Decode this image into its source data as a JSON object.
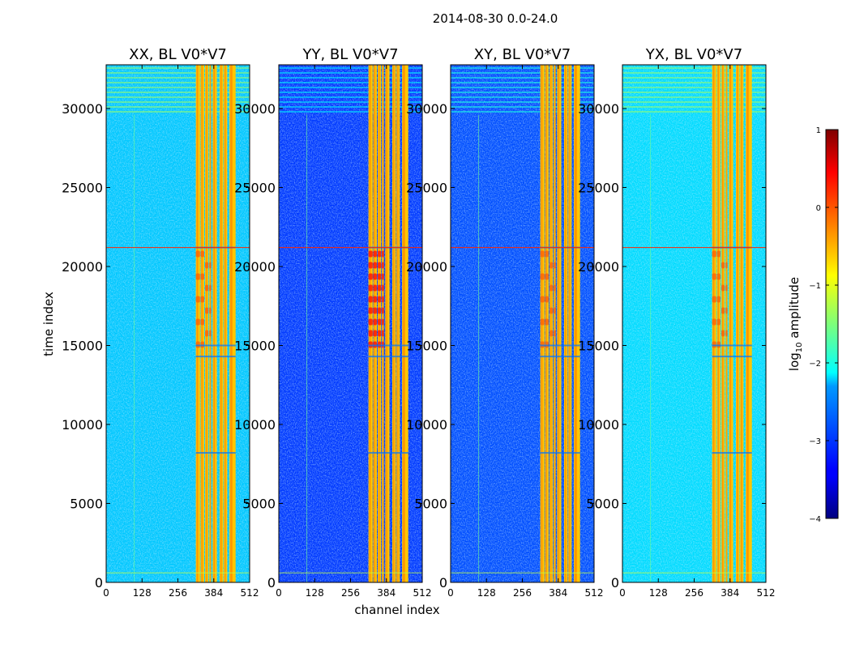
{
  "chart_data": {
    "type": "heatmap",
    "suptitle": "2014-08-30 0.0-24.0",
    "xlabel": "channel index",
    "ylabel": "time index",
    "xlim": [
      0,
      512
    ],
    "ylim": [
      0,
      32768
    ],
    "x_ticks": [
      0,
      128,
      256,
      384,
      512
    ],
    "y_ticks": [
      0,
      5000,
      10000,
      15000,
      20000,
      25000,
      30000
    ],
    "panels": [
      {
        "title": "XX, BL V0*V7",
        "background_level": -2.4,
        "noise_level": -2.0
      },
      {
        "title": "YY, BL V0*V7",
        "background_level": -3.1,
        "noise_level": -2.8
      },
      {
        "title": "XY, BL V0*V7",
        "background_level": -3.0,
        "noise_level": -2.6
      },
      {
        "title": "YX, BL V0*V7",
        "background_level": -2.3,
        "noise_level": -2.0
      }
    ],
    "rfi_channel_bands": [
      [
        320,
        335
      ],
      [
        337,
        350
      ],
      [
        353,
        365
      ],
      [
        368,
        375
      ],
      [
        380,
        395
      ],
      [
        405,
        418
      ],
      [
        420,
        432
      ],
      [
        440,
        462
      ]
    ],
    "rfi_band_level": -0.6,
    "colorbar": {
      "label": "log10 amplitude",
      "range": [
        -4,
        1
      ],
      "ticks": [
        1,
        0,
        -1,
        -2,
        -3,
        -4
      ],
      "tick_labels": [
        "1",
        "0",
        "−1",
        "−2",
        "−3",
        "−4"
      ],
      "colormap": "jet"
    }
  }
}
